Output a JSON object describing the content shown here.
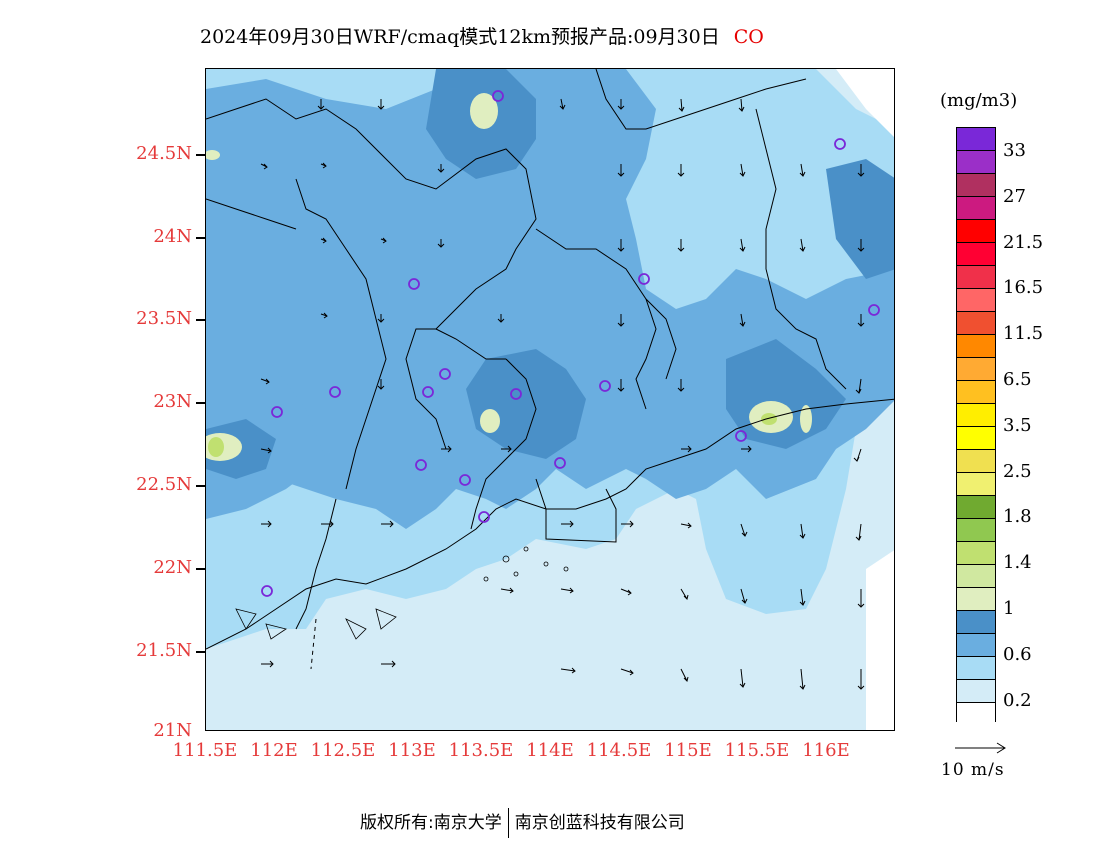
{
  "title": {
    "main": "2024年09月30日WRF/cmaq模式12km预报产品:09月30日",
    "species": "CO"
  },
  "axes": {
    "y_ticks": [
      "24.5N",
      "24N",
      "23.5N",
      "23N",
      "22.5N",
      "22N",
      "21.5N",
      "21N"
    ],
    "x_ticks": [
      "111.5E",
      "112E",
      "112.5E",
      "113E",
      "113.5E",
      "114E",
      "114.5E",
      "115E",
      "115.5E",
      "116E"
    ]
  },
  "legend": {
    "unit": "(mg/m3)",
    "levels": [
      "33",
      "27",
      "21.5",
      "16.5",
      "11.5",
      "6.5",
      "3.5",
      "2.5",
      "1.8",
      "1.4",
      "1",
      "0.6",
      "0.2"
    ],
    "colors": [
      "#7a28d8",
      "#9b2fc8",
      "#b03060",
      "#cc1a80",
      "#ff0000",
      "#ff0033",
      "#f0304a",
      "#ff6666",
      "#f05030",
      "#ff8800",
      "#ffaa33",
      "#ffc020",
      "#ffee00",
      "#ffff00",
      "#f0e050",
      "#f0f070",
      "#70aa30",
      "#90c850",
      "#c0e070",
      "#d0e8a0",
      "#e0eec0",
      "#4a90c8",
      "#6aaee0",
      "#a8dcf5",
      "#d4ecf7",
      "#ffffff"
    ],
    "wind_reference": "10 m/s"
  },
  "map": {
    "station_markers": 17
  },
  "footer": {
    "copyright": "版权所有:南京大学",
    "company": "南京创蓝科技有限公司"
  }
}
